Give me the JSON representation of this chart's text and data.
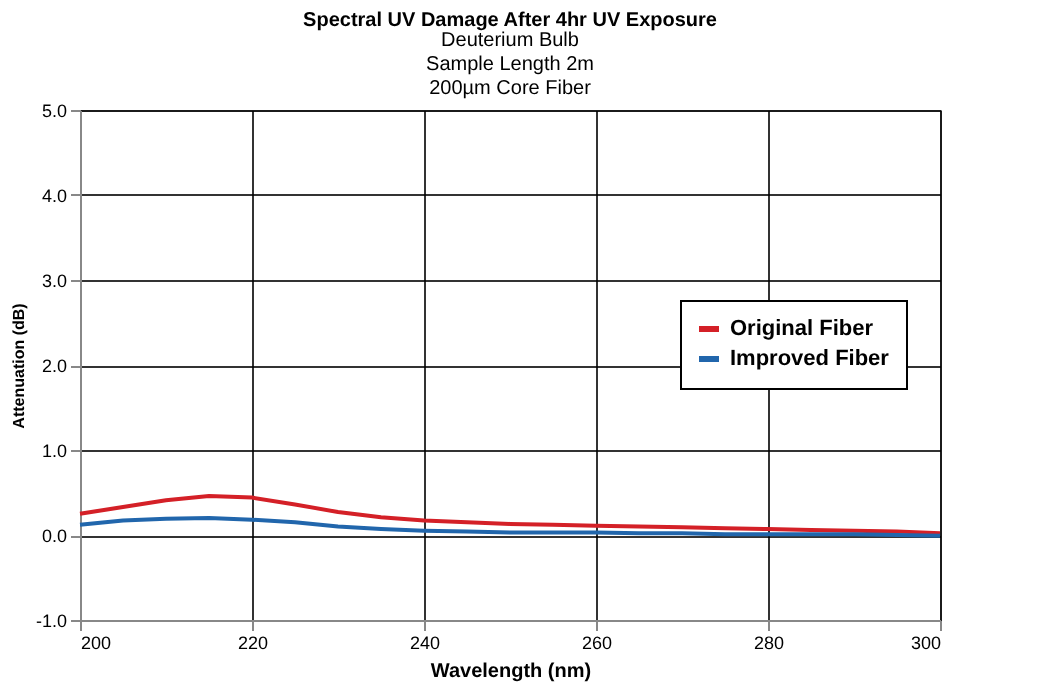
{
  "chart_data": {
    "type": "line",
    "title": "Spectral UV Damage After 4hr UV Exposure",
    "subtitle": [
      "Deuterium Bulb",
      "Sample Length 2m",
      "200µm Core Fiber"
    ],
    "xlabel": "Wavelength (nm)",
    "ylabel": "Attenuation (dB)",
    "x": [
      200,
      205,
      210,
      215,
      220,
      225,
      230,
      235,
      240,
      245,
      250,
      255,
      260,
      265,
      270,
      275,
      280,
      285,
      290,
      295,
      300
    ],
    "series": [
      {
        "name": "Original Fiber",
        "color": "#d42027",
        "values": [
          0.25,
          0.33,
          0.41,
          0.46,
          0.44,
          0.36,
          0.27,
          0.21,
          0.17,
          0.15,
          0.13,
          0.12,
          0.11,
          0.1,
          0.09,
          0.08,
          0.07,
          0.06,
          0.05,
          0.04,
          0.02
        ]
      },
      {
        "name": "Improved Fiber",
        "color": "#2166ac",
        "values": [
          0.12,
          0.17,
          0.19,
          0.2,
          0.18,
          0.15,
          0.1,
          0.07,
          0.05,
          0.04,
          0.03,
          0.03,
          0.03,
          0.02,
          0.02,
          0.01,
          0.01,
          0.01,
          0.01,
          0.0,
          -0.01
        ]
      }
    ],
    "xlim": [
      200,
      300
    ],
    "xticks": [
      200,
      220,
      240,
      260,
      280,
      300
    ],
    "ylim": [
      -1,
      5
    ],
    "yticks": [
      {
        "value": -1,
        "label": "-1.0"
      },
      {
        "value": 0,
        "label": "0.0"
      },
      {
        "value": 1,
        "label": "1.0"
      },
      {
        "value": 2,
        "label": "2.0"
      },
      {
        "value": 3,
        "label": "3.0"
      },
      {
        "value": 4,
        "label": "4.0"
      },
      {
        "value": 5,
        "label": "5.0"
      }
    ],
    "grid": true,
    "legend": "right",
    "marker": "none",
    "line_style": "solid"
  }
}
